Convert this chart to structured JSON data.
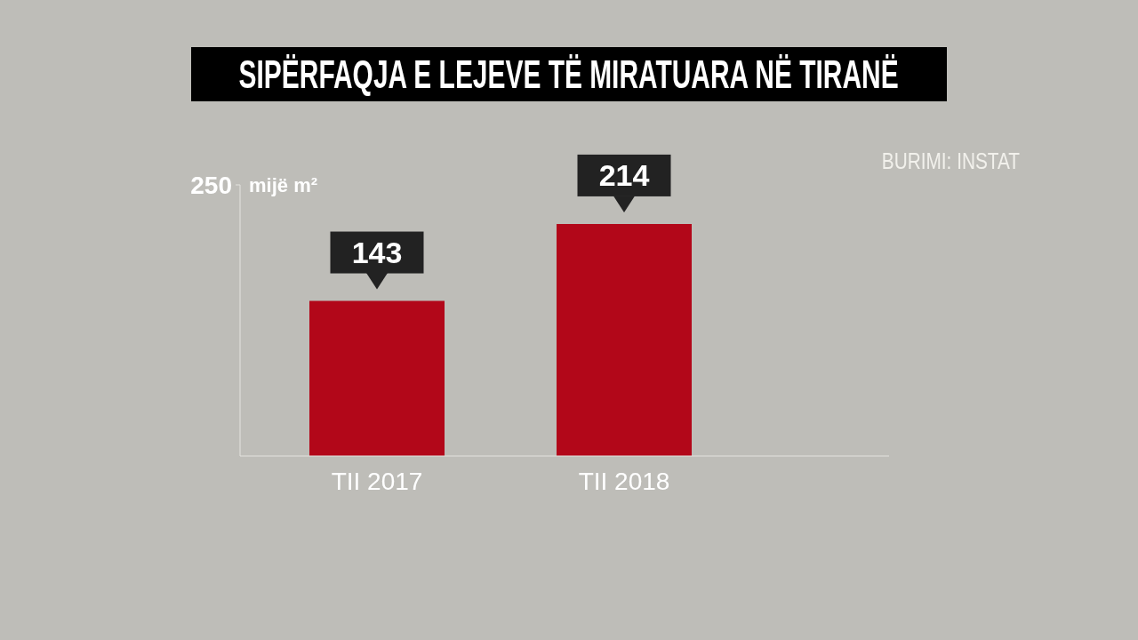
{
  "chart_data": {
    "type": "bar",
    "title": "SIPËRFAQJA E LEJEVE TË MIRATUARA NË TIRANË",
    "ylabel": "mijë m²",
    "categories": [
      "TII 2017",
      "TII 2018"
    ],
    "values": [
      143,
      214
    ],
    "color": "#b20719",
    "ylim": [
      0,
      250
    ],
    "yticks": [
      250
    ],
    "data_labels": true,
    "annotations": [
      "BURIMI: INSTAT"
    ]
  }
}
